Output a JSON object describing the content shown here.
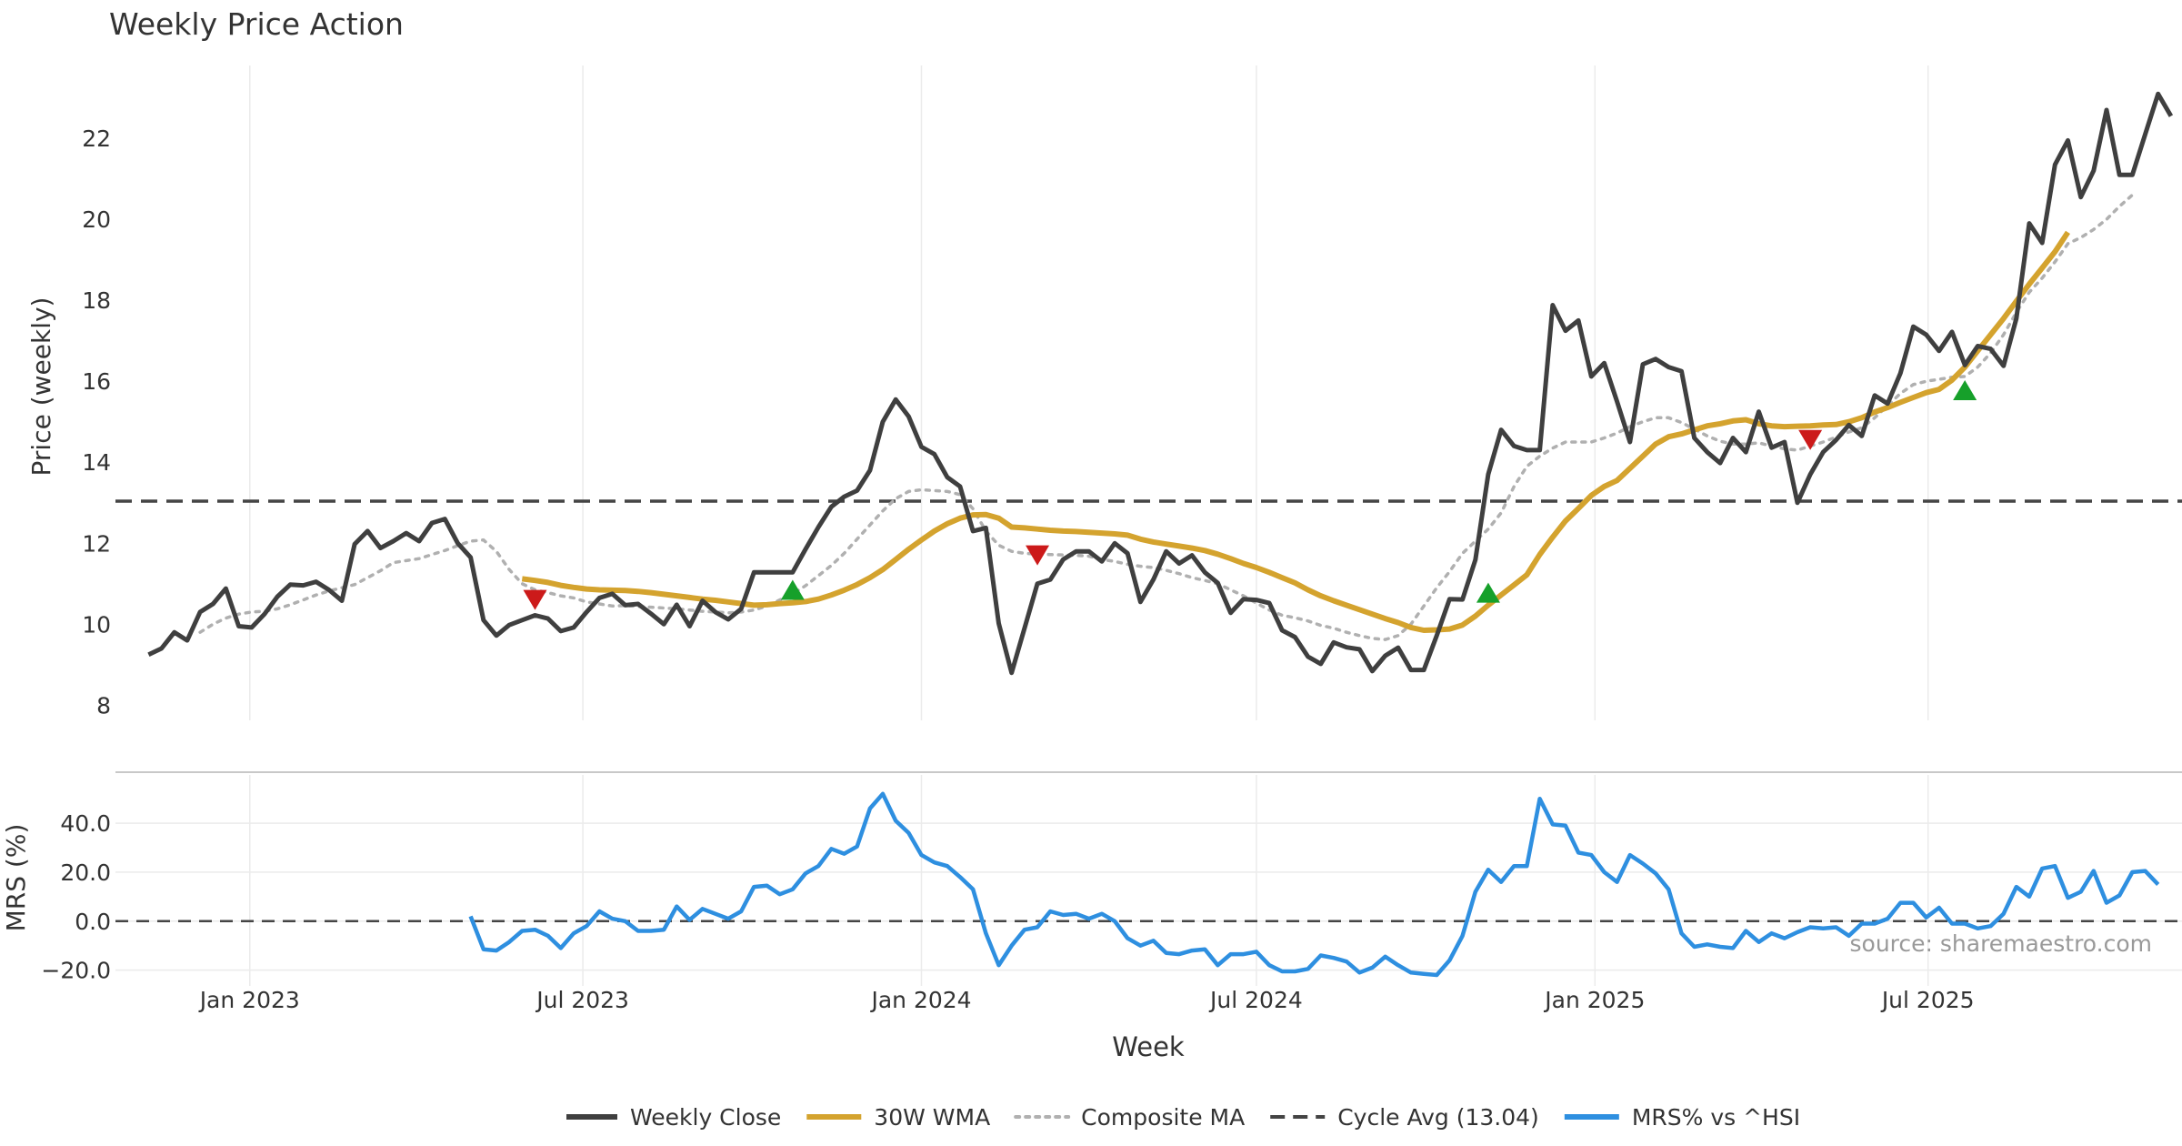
{
  "colors": {
    "close": "#3f3f3f",
    "wma": "#d4a32e",
    "composite": "#b0b0b0",
    "cycle": "#444444",
    "mrs": "#2e8fe0",
    "buy": "#16a02a",
    "sell": "#cc1a1a",
    "grid": "#ebebeb",
    "text": "#333333",
    "source": "#999999"
  },
  "chart_data": [
    {
      "type": "line",
      "title": "Weekly Price Action",
      "ylabel": "Price (weekly)",
      "ylim": [
        7.85,
        23.8
      ],
      "yticks": [
        8,
        10,
        12,
        14,
        16,
        18,
        20,
        22
      ],
      "x_start": "2022-11-07",
      "x_step_days": 7,
      "cycle_avg": 13.04,
      "series": [
        {
          "name": "Weekly Close",
          "start_index": 0,
          "values": [
            9.25,
            9.4,
            9.8,
            9.6,
            10.3,
            10.5,
            10.88,
            9.95,
            9.92,
            10.25,
            10.68,
            10.98,
            10.96,
            11.05,
            10.85,
            10.58,
            11.98,
            12.3,
            11.88,
            12.05,
            12.25,
            12.05,
            12.5,
            12.6,
            12.0,
            11.65,
            10.1,
            9.72,
            9.98,
            10.1,
            10.22,
            10.14,
            9.83,
            9.92,
            10.3,
            10.65,
            10.75,
            10.47,
            10.5,
            10.26,
            10.0,
            10.48,
            9.95,
            10.58,
            10.3,
            10.12,
            10.38,
            11.28,
            11.28,
            11.28,
            11.28,
            11.85,
            12.4,
            12.9,
            13.15,
            13.3,
            13.8,
            15.0,
            15.55,
            15.13,
            14.38,
            14.2,
            13.63,
            13.4,
            12.3,
            12.38,
            10.02,
            8.8,
            9.9,
            11.0,
            11.1,
            11.6,
            11.8,
            11.8,
            11.55,
            12.0,
            11.75,
            10.55,
            11.1,
            11.8,
            11.5,
            11.7,
            11.28,
            11.02,
            10.28,
            10.62,
            10.6,
            10.52,
            9.85,
            9.68,
            9.2,
            9.02,
            9.55,
            9.43,
            9.38,
            8.84,
            9.22,
            9.42,
            8.87,
            8.87,
            9.72,
            10.62,
            10.61,
            11.59,
            13.7,
            14.8,
            14.4,
            14.3,
            14.3,
            17.88,
            17.25,
            17.5,
            16.12,
            16.45,
            15.5,
            14.5,
            16.42,
            16.55,
            16.35,
            16.25,
            14.6,
            14.25,
            13.98,
            14.6,
            14.25,
            15.25,
            14.36,
            14.5,
            13.0,
            13.7,
            14.25,
            14.55,
            14.92,
            14.65,
            15.65,
            15.45,
            16.2,
            17.35,
            17.15,
            16.75,
            17.22,
            16.4,
            16.87,
            16.8,
            16.38,
            17.55,
            19.9,
            19.42,
            21.35,
            21.95,
            20.55,
            21.2,
            22.7,
            21.1,
            21.1,
            22.1,
            23.1,
            22.55
          ]
        },
        {
          "name": "30W WMA",
          "start_index": 29,
          "values": [
            11.12,
            11.08,
            11.03,
            10.96,
            10.91,
            10.87,
            10.85,
            10.84,
            10.83,
            10.81,
            10.78,
            10.74,
            10.7,
            10.66,
            10.62,
            10.59,
            10.55,
            10.51,
            10.47,
            10.48,
            10.51,
            10.53,
            10.56,
            10.62,
            10.72,
            10.84,
            10.98,
            11.15,
            11.35,
            11.6,
            11.85,
            12.08,
            12.3,
            12.48,
            12.62,
            12.7,
            12.71,
            12.62,
            12.4,
            12.38,
            12.35,
            12.32,
            12.3,
            12.29,
            12.27,
            12.25,
            12.23,
            12.2,
            12.1,
            12.03,
            11.98,
            11.93,
            11.88,
            11.82,
            11.73,
            11.62,
            11.5,
            11.4,
            11.28,
            11.15,
            11.02,
            10.85,
            10.7,
            10.58,
            10.47,
            10.36,
            10.25,
            10.14,
            10.04,
            9.92,
            9.85,
            9.86,
            9.88,
            9.98,
            10.2,
            10.47,
            10.72,
            10.97,
            11.22,
            11.72,
            12.15,
            12.55,
            12.86,
            13.18,
            13.4,
            13.55,
            13.85,
            14.15,
            14.45,
            14.63,
            14.7,
            14.8,
            14.9,
            14.95,
            15.02,
            15.05,
            14.95,
            14.9,
            14.88,
            14.89,
            14.9,
            14.92,
            14.93,
            15.0,
            15.1,
            15.24,
            15.35,
            15.48,
            15.6,
            15.72,
            15.8,
            16.03,
            16.35,
            16.75,
            17.15,
            17.55,
            17.98,
            18.4,
            18.8,
            19.2,
            19.68
          ]
        },
        {
          "name": "Composite MA",
          "start_index": 4,
          "values": [
            9.8,
            10.0,
            10.15,
            10.25,
            10.3,
            10.32,
            10.38,
            10.48,
            10.6,
            10.72,
            10.82,
            10.9,
            10.98,
            11.15,
            11.32,
            11.52,
            11.57,
            11.62,
            11.72,
            11.82,
            11.94,
            12.05,
            12.08,
            11.8,
            11.35,
            11.0,
            10.85,
            10.78,
            10.7,
            10.65,
            10.55,
            10.5,
            10.45,
            10.46,
            10.44,
            10.42,
            10.4,
            10.38,
            10.35,
            10.32,
            10.3,
            10.28,
            10.3,
            10.35,
            10.45,
            10.6,
            10.75,
            10.95,
            11.2,
            11.45,
            11.75,
            12.1,
            12.45,
            12.8,
            13.1,
            13.28,
            13.32,
            13.3,
            13.28,
            13.2,
            12.85,
            12.3,
            11.95,
            11.8,
            11.75,
            11.73,
            11.72,
            11.71,
            11.7,
            11.68,
            11.6,
            11.55,
            11.48,
            11.43,
            11.4,
            11.33,
            11.25,
            11.15,
            11.08,
            11.0,
            10.85,
            10.7,
            10.52,
            10.35,
            10.22,
            10.16,
            10.08,
            9.97,
            9.9,
            9.8,
            9.72,
            9.65,
            9.62,
            9.72,
            10.0,
            10.45,
            10.9,
            11.3,
            11.75,
            12.05,
            12.35,
            12.75,
            13.4,
            13.9,
            14.15,
            14.35,
            14.5,
            14.5,
            14.5,
            14.6,
            14.72,
            14.88,
            15.0,
            15.1,
            15.1,
            14.98,
            14.82,
            14.65,
            14.52,
            14.45,
            14.45,
            14.48,
            14.4,
            14.33,
            14.3,
            14.4,
            14.5,
            14.62,
            14.75,
            14.85,
            15.1,
            15.4,
            15.7,
            15.92,
            16.0,
            16.05,
            16.1,
            16.12,
            16.35,
            16.7,
            17.15,
            17.7,
            18.2,
            18.55,
            18.95,
            19.4,
            19.55,
            19.75,
            20.0,
            20.32,
            20.6
          ]
        }
      ],
      "signals": [
        {
          "type": "sell",
          "index": 30,
          "value": 10.6
        },
        {
          "type": "buy",
          "index": 50,
          "value": 10.85
        },
        {
          "type": "sell",
          "index": 69,
          "value": 11.7
        },
        {
          "type": "buy",
          "index": 104,
          "value": 10.78
        },
        {
          "type": "sell",
          "index": 129,
          "value": 14.55
        },
        {
          "type": "buy",
          "index": 141,
          "value": 15.78
        }
      ]
    },
    {
      "type": "line",
      "ylabel": "MRS (%)",
      "ylim": [
        -22,
        56
      ],
      "yticks": [
        -20,
        0,
        20,
        40
      ],
      "ytick_labels": [
        "−20.0",
        "0.0",
        "20.0",
        "40.0"
      ],
      "series": [
        {
          "name": "MRS% vs ^HSI",
          "start_index": 25,
          "values": [
            2,
            -11.5,
            -12,
            -8.5,
            -4,
            -3.5,
            -6,
            -11,
            -5,
            -2,
            4,
            1,
            0,
            -4,
            -4,
            -3.5,
            6,
            0.5,
            5,
            3,
            1,
            4,
            14,
            14.5,
            11,
            13,
            19.5,
            22.5,
            29.5,
            27.5,
            30.5,
            46,
            52,
            41,
            36,
            27,
            24,
            22.5,
            18,
            13,
            -5,
            -18,
            -10,
            -3.5,
            -2.5,
            4,
            2.5,
            3,
            1,
            3,
            0,
            -7,
            -10,
            -8,
            -13,
            -13.5,
            -12,
            -11.5,
            -18,
            -13.5,
            -13.5,
            -12.5,
            -18,
            -20.5,
            -20.5,
            -19.5,
            -14,
            -15,
            -16.5,
            -21,
            -19,
            -14.5,
            -18,
            -21,
            -21.5,
            -22,
            -16,
            -6,
            12,
            21,
            16,
            22.5,
            22.5,
            50,
            39.5,
            39,
            28,
            27,
            20,
            16,
            27,
            23.5,
            19.5,
            13,
            -5,
            -10.5,
            -9.5,
            -10.5,
            -11,
            -4,
            -8.5,
            -5,
            -7,
            -4.5,
            -2.5,
            -3,
            -2.5,
            -6,
            -1,
            -1,
            1,
            7.5,
            7.5,
            1.5,
            5.5,
            -1,
            -1,
            -3,
            -2,
            3,
            14,
            10,
            21.5,
            22.5,
            9.5,
            12,
            20.5,
            7.5,
            10.5,
            20,
            20.5,
            15
          ]
        }
      ]
    }
  ],
  "x_ticks": [
    "Jan 2023",
    "Jul 2023",
    "Jan 2024",
    "Jul 2024",
    "Jan 2025",
    "Jul 2025"
  ],
  "x_tick_dates": [
    "2023-01-01",
    "2023-07-01",
    "2024-01-01",
    "2024-07-01",
    "2025-01-01",
    "2025-07-01"
  ],
  "xlabel": "Week",
  "x_range_dates": [
    "2022-10-20",
    "2025-11-16"
  ],
  "source": "source: sharemaestro.com",
  "legend": [
    {
      "label": "Weekly Close",
      "style": "solid",
      "color_key": "close"
    },
    {
      "label": "30W WMA",
      "style": "solid",
      "color_key": "wma"
    },
    {
      "label": "Composite MA",
      "style": "dotted",
      "color_key": "composite"
    },
    {
      "label": "Cycle Avg (13.04)",
      "style": "dashed",
      "color_key": "cycle"
    },
    {
      "label": "MRS% vs ^HSI",
      "style": "solid",
      "color_key": "mrs"
    }
  ]
}
